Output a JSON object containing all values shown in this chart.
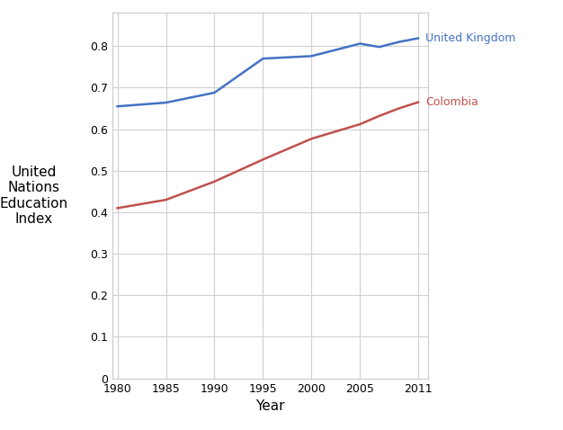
{
  "uk_years": [
    1980,
    1985,
    1990,
    1995,
    2000,
    2005,
    2007,
    2009,
    2011
  ],
  "uk_values": [
    0.655,
    0.664,
    0.688,
    0.77,
    0.776,
    0.806,
    0.798,
    0.81,
    0.819
  ],
  "col_years": [
    1980,
    1985,
    1990,
    1995,
    2000,
    2005,
    2007,
    2009,
    2011
  ],
  "col_values": [
    0.41,
    0.43,
    0.474,
    0.527,
    0.577,
    0.612,
    0.632,
    0.65,
    0.665
  ],
  "uk_color": "#4472C4",
  "col_color": "#C0504D",
  "uk_label": "United Kingdom",
  "col_label": "Colombia",
  "ylabel": "United\nNations\nEducation\nIndex",
  "xlabel": "Year",
  "ylim": [
    0,
    0.88
  ],
  "xlim": [
    1979.5,
    2012
  ],
  "yticks": [
    0,
    0.1,
    0.2,
    0.3,
    0.4,
    0.5,
    0.6,
    0.7,
    0.8
  ],
  "ytick_labels": [
    "0",
    "0.1",
    "0.2",
    "0.3",
    "0.4",
    "0.5",
    "0.6",
    "0.7",
    "0.8"
  ],
  "xticks": [
    1980,
    1985,
    1990,
    1995,
    2000,
    2005,
    2011
  ],
  "bg_color": "#ffffff",
  "grid_color": "#d0d0d0",
  "line_width": 1.8,
  "label_fontsize": 11,
  "tick_fontsize": 9,
  "annot_fontsize": 9
}
